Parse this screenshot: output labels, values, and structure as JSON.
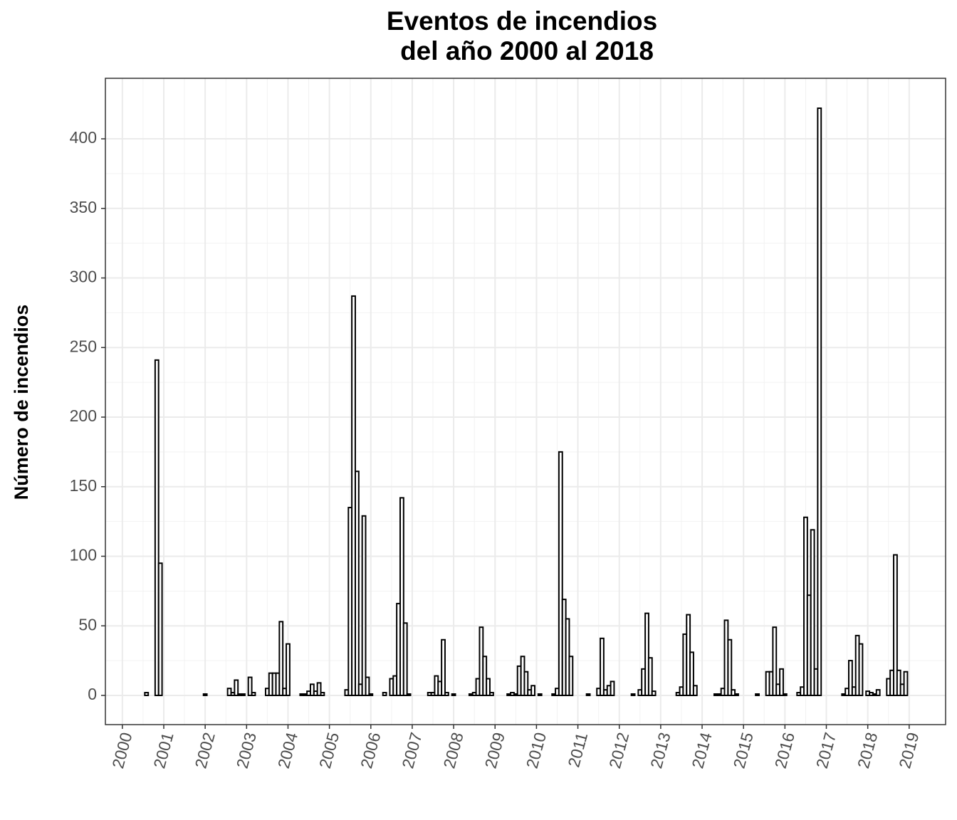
{
  "chart_data": {
    "type": "bar",
    "title": [
      "Eventos de incendios",
      "del año 2000 al 2018"
    ],
    "ylabel": "Número de incendios",
    "x": [
      2000.583,
      2000.833,
      2000.917,
      2002.0,
      2002.583,
      2002.667,
      2002.75,
      2002.833,
      2002.917,
      2003.083,
      2003.167,
      2003.5,
      2003.583,
      2003.667,
      2003.75,
      2003.833,
      2003.917,
      2004.0,
      2004.333,
      2004.417,
      2004.5,
      2004.583,
      2004.667,
      2004.75,
      2004.833,
      2005.417,
      2005.5,
      2005.583,
      2005.667,
      2005.75,
      2005.833,
      2005.917,
      2006.0,
      2006.333,
      2006.5,
      2006.583,
      2006.667,
      2006.75,
      2006.833,
      2006.917,
      2007.417,
      2007.5,
      2007.583,
      2007.667,
      2007.75,
      2007.833,
      2008.0,
      2008.417,
      2008.5,
      2008.583,
      2008.667,
      2008.75,
      2008.833,
      2008.917,
      2009.333,
      2009.417,
      2009.5,
      2009.583,
      2009.667,
      2009.75,
      2009.833,
      2009.917,
      2010.083,
      2010.417,
      2010.5,
      2010.583,
      2010.667,
      2010.75,
      2010.833,
      2011.25,
      2011.5,
      2011.583,
      2011.667,
      2011.75,
      2011.833,
      2012.333,
      2012.5,
      2012.583,
      2012.667,
      2012.75,
      2012.833,
      2013.417,
      2013.5,
      2013.583,
      2013.667,
      2013.75,
      2013.833,
      2014.333,
      2014.417,
      2014.5,
      2014.583,
      2014.667,
      2014.75,
      2014.833,
      2015.333,
      2015.583,
      2015.667,
      2015.75,
      2015.833,
      2015.917,
      2016.0,
      2016.333,
      2016.417,
      2016.5,
      2016.583,
      2016.667,
      2016.75,
      2016.833,
      2017.417,
      2017.5,
      2017.583,
      2017.667,
      2017.75,
      2017.833,
      2018.0,
      2018.083,
      2018.167,
      2018.25,
      2018.5,
      2018.583,
      2018.667,
      2018.75,
      2018.833,
      2018.917
    ],
    "values": [
      2,
      241,
      95,
      1,
      5,
      2,
      11,
      1,
      1,
      13,
      2,
      5,
      16,
      16,
      16,
      53,
      5,
      37,
      1,
      1,
      3,
      8,
      3,
      9,
      2,
      4,
      135,
      287,
      161,
      8,
      129,
      13,
      1,
      2,
      12,
      14,
      66,
      142,
      52,
      1,
      2,
      2,
      14,
      10,
      40,
      2,
      1,
      1,
      2,
      12,
      49,
      28,
      12,
      2,
      1,
      2,
      1,
      21,
      28,
      17,
      4,
      7,
      1,
      1,
      5,
      175,
      69,
      55,
      28,
      1,
      5,
      41,
      4,
      7,
      10,
      1,
      4,
      19,
      59,
      27,
      3,
      2,
      6,
      44,
      58,
      31,
      7,
      1,
      1,
      5,
      54,
      40,
      4,
      1,
      1,
      17,
      17,
      49,
      8,
      19,
      1,
      2,
      6,
      128,
      72,
      119,
      19,
      422,
      1,
      5,
      25,
      6,
      43,
      37,
      3,
      2,
      1,
      4,
      12,
      18,
      101,
      18,
      8,
      17
    ],
    "color": "#ffffff",
    "edgecolor": "#000000",
    "xlim": [
      1999.59,
      2019.88
    ],
    "xticks": [
      2000,
      2001,
      2002,
      2003,
      2004,
      2005,
      2006,
      2007,
      2008,
      2009,
      2010,
      2011,
      2012,
      2013,
      2014,
      2015,
      2016,
      2017,
      2018,
      2019
    ],
    "ylim": [
      -21,
      443.5
    ],
    "yticks": [
      0,
      50,
      100,
      150,
      200,
      250,
      300,
      350,
      400
    ],
    "grid": true
  }
}
